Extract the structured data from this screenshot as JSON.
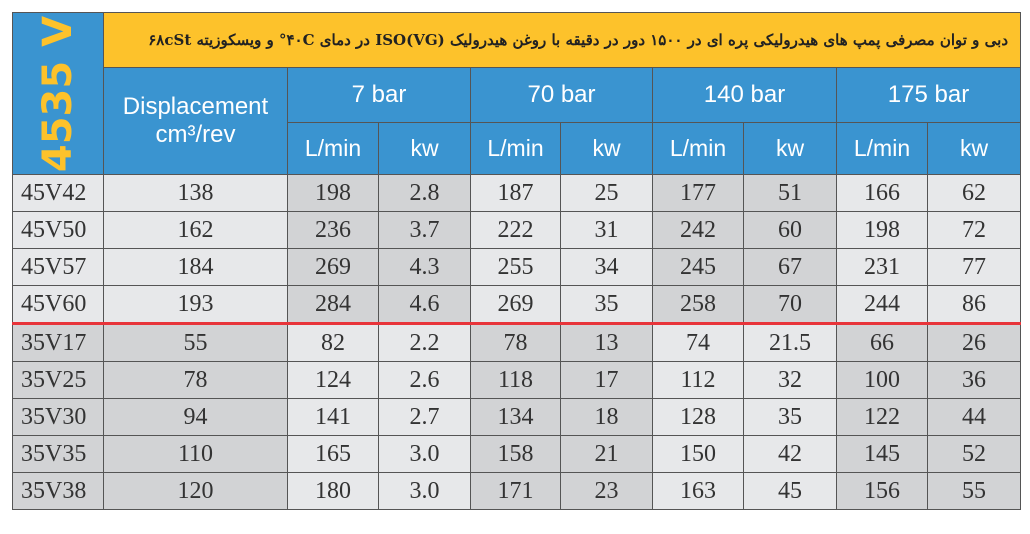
{
  "series_label": "4535 V",
  "title": "دبی و توان مصرفی پمپ های هیدرولیکی پره ای در ۱۵۰۰ دور در دقیقه با روغن هیدرولیک ISO(VG) در دمای ۴۰C° و ویسکوزیته ۶۸cSt",
  "displacement_header": {
    "label": "Displacement",
    "unit": "cm³/rev"
  },
  "pressures": [
    "7 bar",
    "70 bar",
    "140 bar",
    "175 bar"
  ],
  "sub_headers": [
    "L/min",
    "kw"
  ],
  "colors": {
    "header_blue": "#3a94d0",
    "title_yellow": "#fdc22b",
    "separator_red": "#e8343a"
  },
  "rows": [
    {
      "model": "45V42",
      "disp": "138",
      "v": [
        "198",
        "2.8",
        "187",
        "25",
        "177",
        "51",
        "166",
        "62"
      ]
    },
    {
      "model": "45V50",
      "disp": "162",
      "v": [
        "236",
        "3.7",
        "222",
        "31",
        "242",
        "60",
        "198",
        "72"
      ]
    },
    {
      "model": "45V57",
      "disp": "184",
      "v": [
        "269",
        "4.3",
        "255",
        "34",
        "245",
        "67",
        "231",
        "77"
      ]
    },
    {
      "model": "45V60",
      "disp": "193",
      "v": [
        "284",
        "4.6",
        "269",
        "35",
        "258",
        "70",
        "244",
        "86"
      ]
    },
    {
      "model": "35V17",
      "disp": "55",
      "v": [
        "82",
        "2.2",
        "78",
        "13",
        "74",
        "21.5",
        "66",
        "26"
      ]
    },
    {
      "model": "35V25",
      "disp": "78",
      "v": [
        "124",
        "2.6",
        "118",
        "17",
        "112",
        "32",
        "100",
        "36"
      ]
    },
    {
      "model": "35V30",
      "disp": "94",
      "v": [
        "141",
        "2.7",
        "134",
        "18",
        "128",
        "35",
        "122",
        "44"
      ]
    },
    {
      "model": "35V35",
      "disp": "110",
      "v": [
        "165",
        "3.0",
        "158",
        "21",
        "150",
        "42",
        "145",
        "52"
      ]
    },
    {
      "model": "35V38",
      "disp": "120",
      "v": [
        "180",
        "3.0",
        "171",
        "23",
        "163",
        "45",
        "156",
        "55"
      ]
    }
  ]
}
